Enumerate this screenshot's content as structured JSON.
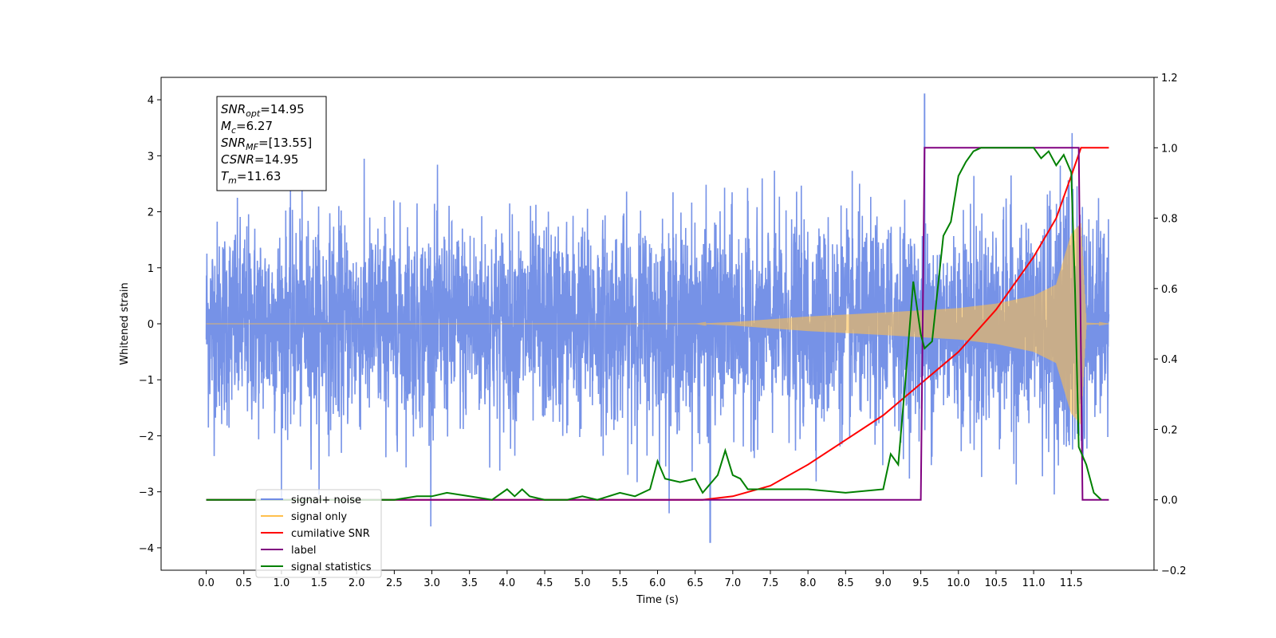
{
  "chart_data": {
    "type": "line",
    "title": "",
    "xlabel": "Time (s)",
    "ylabel": "Whitened strain",
    "y2label": "",
    "xlim": [
      -0.6,
      12.6
    ],
    "ylim": [
      -4.4,
      4.4
    ],
    "y2lim": [
      -0.2,
      1.2
    ],
    "grid": false,
    "legend_placement": "lower-left",
    "x_ticks": [
      "0.0",
      "0.5",
      "1.0",
      "1.5",
      "2.0",
      "2.5",
      "3.0",
      "3.5",
      "4.0",
      "4.5",
      "5.0",
      "5.5",
      "6.0",
      "6.5",
      "7.0",
      "7.5",
      "8.0",
      "8.5",
      "9.0",
      "9.5",
      "10.0",
      "10.5",
      "11.0",
      "11.5"
    ],
    "y_ticks": [
      "4",
      "3",
      "2",
      "1",
      "0",
      "−1",
      "−2",
      "−3",
      "−4"
    ],
    "y2_ticks": [
      "1.2",
      "1.0",
      "0.8",
      "0.6",
      "0.4",
      "0.2",
      "0.0",
      "−0.2"
    ],
    "annotation": {
      "lines": [
        {
          "base": "SNR",
          "sub": "opt",
          "rest": "=14.95"
        },
        {
          "base": "M",
          "sub": "c",
          "rest": "=6.27"
        },
        {
          "base": "SNR",
          "sub": "MF",
          "rest": "=[13.55]"
        },
        {
          "base": "CSNR",
          "sub": "",
          "rest": "=14.95"
        },
        {
          "base": "T",
          "sub": "m",
          "rest": "=11.63"
        }
      ]
    },
    "series": [
      {
        "name": "signal+ noise",
        "axis": "left",
        "color": "#6f8ce6",
        "description_values": {
          "noise_std": 0.9,
          "x_start": 0.0,
          "x_end": 12.0,
          "peak": 4.1,
          "peak_x": 9.55,
          "min": -3.9,
          "min_x": 6.7
        }
      },
      {
        "name": "signal only",
        "axis": "left",
        "color": "#ffc04d",
        "envelope": {
          "x": [
            0.0,
            6.5,
            7.0,
            8.0,
            9.0,
            10.0,
            10.5,
            11.0,
            11.3,
            11.5,
            11.63,
            11.7,
            12.0
          ],
          "amplitude": [
            0.0,
            0.0,
            0.03,
            0.13,
            0.2,
            0.28,
            0.36,
            0.5,
            0.7,
            1.6,
            1.8,
            0.02,
            0.0
          ]
        }
      },
      {
        "name": "cumilative SNR",
        "axis": "right",
        "color": "#ff0000",
        "x": [
          0.0,
          6.6,
          7.0,
          7.5,
          8.0,
          8.5,
          9.0,
          9.5,
          10.0,
          10.5,
          11.0,
          11.3,
          11.5,
          11.63,
          11.7,
          12.0
        ],
        "y": [
          0.0,
          0.0,
          0.01,
          0.04,
          0.1,
          0.17,
          0.24,
          0.33,
          0.42,
          0.54,
          0.69,
          0.8,
          0.92,
          1.0,
          1.0,
          1.0
        ]
      },
      {
        "name": "label",
        "axis": "right",
        "color": "#800080",
        "x": [
          0.0,
          9.5,
          9.55,
          11.6,
          11.65,
          12.0
        ],
        "y": [
          0.0,
          0.0,
          1.0,
          1.0,
          0.0,
          0.0
        ]
      },
      {
        "name": "signal statistics",
        "axis": "right",
        "color": "#008000",
        "x": [
          0.0,
          2.5,
          2.8,
          3.0,
          3.2,
          3.5,
          3.8,
          4.0,
          4.1,
          4.2,
          4.3,
          4.5,
          4.8,
          5.0,
          5.2,
          5.5,
          5.7,
          5.9,
          6.0,
          6.1,
          6.3,
          6.5,
          6.6,
          6.8,
          6.9,
          7.0,
          7.1,
          7.2,
          7.5,
          8.0,
          8.5,
          9.0,
          9.1,
          9.2,
          9.3,
          9.4,
          9.5,
          9.55,
          9.65,
          9.7,
          9.8,
          9.9,
          10.0,
          10.1,
          10.2,
          10.3,
          10.5,
          10.8,
          11.0,
          11.1,
          11.2,
          11.3,
          11.4,
          11.5,
          11.55,
          11.6,
          11.7,
          11.8,
          11.9
        ],
        "y": [
          0.0,
          0.0,
          0.01,
          0.01,
          0.02,
          0.01,
          0.0,
          0.03,
          0.01,
          0.03,
          0.01,
          0.0,
          0.0,
          0.01,
          0.0,
          0.02,
          0.01,
          0.03,
          0.11,
          0.06,
          0.05,
          0.06,
          0.02,
          0.07,
          0.14,
          0.07,
          0.06,
          0.03,
          0.03,
          0.03,
          0.02,
          0.03,
          0.13,
          0.1,
          0.35,
          0.62,
          0.47,
          0.43,
          0.45,
          0.55,
          0.75,
          0.79,
          0.92,
          0.96,
          0.99,
          1.0,
          1.0,
          1.0,
          1.0,
          0.97,
          0.99,
          0.95,
          0.98,
          0.93,
          0.6,
          0.15,
          0.1,
          0.02,
          0.0
        ]
      }
    ]
  }
}
